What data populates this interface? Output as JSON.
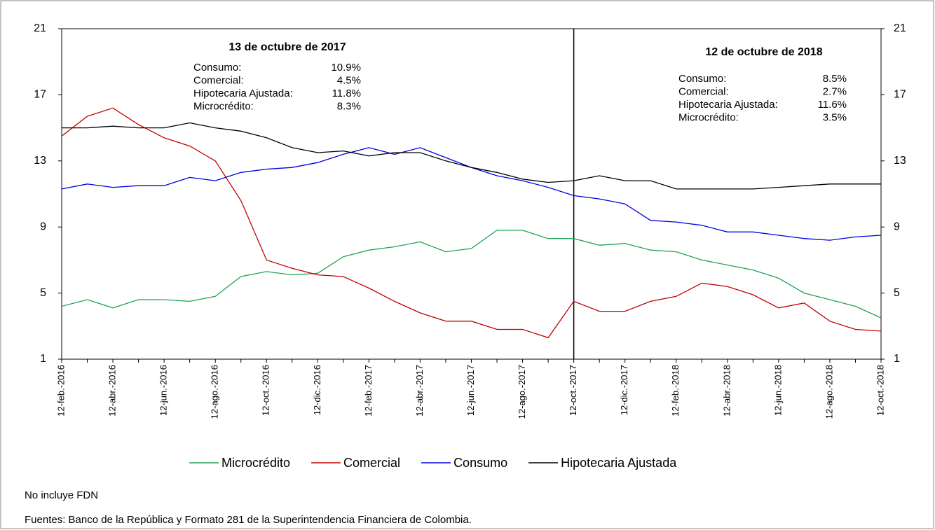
{
  "chart_data": {
    "type": "line",
    "categories": [
      "12-feb.-2016",
      null,
      "12-abr.-2016",
      null,
      "12-jun.-2016",
      null,
      "12-ago.-2016",
      null,
      "12-oct.-2016",
      null,
      "12-dic.-2016",
      null,
      "12-feb.-2017",
      null,
      "12-abr.-2017",
      null,
      "12-jun.-2017",
      null,
      "12-ago.-2017",
      null,
      "12-oct.-2017",
      null,
      "12-dic.-2017",
      null,
      "12-feb.-2018",
      null,
      "12-abr.-2018",
      null,
      "12-jun.-2018",
      null,
      "12-ago.-2018",
      null,
      "12-oct.-2018"
    ],
    "series": [
      {
        "name": "Microcrédito",
        "color": "#1fa455",
        "values": [
          4.2,
          4.6,
          4.1,
          4.6,
          4.6,
          4.5,
          4.8,
          6.0,
          6.3,
          6.1,
          6.2,
          7.2,
          7.6,
          7.8,
          8.1,
          7.5,
          7.7,
          8.8,
          8.8,
          8.3,
          8.3,
          7.9,
          8.0,
          7.6,
          7.5,
          7.0,
          6.7,
          6.4,
          5.9,
          5.0,
          4.6,
          4.2,
          3.5
        ]
      },
      {
        "name": "Comercial",
        "color": "#c00000",
        "values": [
          14.5,
          15.7,
          16.2,
          15.2,
          14.4,
          13.9,
          13.0,
          10.6,
          7.0,
          6.5,
          6.1,
          6.0,
          5.3,
          4.5,
          3.8,
          3.3,
          3.3,
          2.8,
          2.8,
          2.3,
          4.5,
          3.9,
          3.9,
          4.5,
          4.8,
          5.6,
          5.4,
          4.9,
          4.1,
          4.4,
          3.3,
          2.8,
          2.7
        ]
      },
      {
        "name": "Consumo",
        "color": "#0000e0",
        "values": [
          11.3,
          11.6,
          11.4,
          11.5,
          11.5,
          12.0,
          11.8,
          12.3,
          12.5,
          12.6,
          12.9,
          13.4,
          13.8,
          13.4,
          13.8,
          13.2,
          12.6,
          12.1,
          11.8,
          11.4,
          10.9,
          10.7,
          10.4,
          9.4,
          9.3,
          9.1,
          8.7,
          8.7,
          8.5,
          8.3,
          8.2,
          8.4,
          8.5
        ]
      },
      {
        "name": "Hipotecaria Ajustada",
        "color": "#000000",
        "values": [
          15.0,
          15.0,
          15.1,
          15.0,
          15.0,
          15.3,
          15.0,
          14.8,
          14.4,
          13.8,
          13.5,
          13.6,
          13.3,
          13.5,
          13.5,
          13.0,
          12.6,
          12.3,
          11.9,
          11.7,
          11.8,
          12.1,
          11.8,
          11.8,
          11.3,
          11.3,
          11.3,
          11.3,
          11.4,
          11.5,
          11.6,
          11.6,
          11.6
        ]
      }
    ],
    "ylim": [
      1,
      21
    ],
    "yticks": [
      1,
      5,
      9,
      13,
      17,
      21
    ],
    "y2lim": [
      1,
      21
    ],
    "y2ticks": [
      1,
      5,
      9,
      13,
      17,
      21
    ],
    "vline": "12-oct.-2017",
    "annotations": [
      {
        "title": "13 de octubre de 2017",
        "items": [
          {
            "label": "Consumo:",
            "value": "10.9%"
          },
          {
            "label": "Comercial:",
            "value": "4.5%"
          },
          {
            "label": "Hipotecaria Ajustada:",
            "value": "11.8%"
          },
          {
            "label": "Microcrédito:",
            "value": "8.3%"
          }
        ]
      },
      {
        "title": "12 de octubre de 2018",
        "items": [
          {
            "label": "Consumo:",
            "value": "8.5%"
          },
          {
            "label": "Comercial:",
            "value": "2.7%"
          },
          {
            "label": "Hipotecaria Ajustada:",
            "value": "11.6%"
          },
          {
            "label": "Microcrédito:",
            "value": "3.5%"
          }
        ]
      }
    ],
    "notes": [
      "No incluye FDN",
      "Fuentes: Banco de la República y Formato 281 de la Superintendencia Financiera de Colombia."
    ]
  }
}
